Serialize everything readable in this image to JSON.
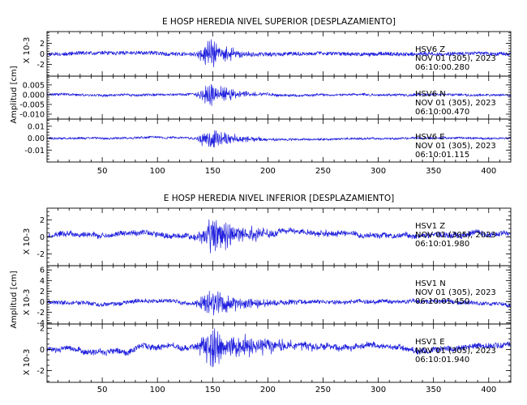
{
  "trace_color": "#1f1fdd",
  "axis_color": "#000000",
  "chart_data": [
    {
      "type": "line",
      "title": "E HOSP HEREDIA NIVEL SUPERIOR [DESPLAZAMIENTO]",
      "ylabel": "Amplitud [cm]",
      "xlim": [
        0,
        420
      ],
      "xticks": [
        50,
        100,
        150,
        200,
        250,
        300,
        350,
        400
      ],
      "xtick_labels": [
        "50",
        "100",
        "150",
        "200",
        "250",
        "300",
        "350",
        "400"
      ],
      "panels": [
        {
          "ylabel": "X 10-3",
          "ylim": [
            -4.2,
            4.2
          ],
          "yticks": [
            -2,
            0,
            2
          ],
          "ytick_labels": [
            "-2",
            "0",
            "2"
          ],
          "annotation": [
            "HSV6  Z",
            "NOV 01 (305), 2023",
            "06:10:00.280"
          ],
          "signal": {
            "noise": 0.35,
            "drift": 0.25,
            "burst_start": 133,
            "burst_peak": 149,
            "burst_decay": 16,
            "burst_amp": 3.6,
            "seed": 11
          }
        },
        {
          "ylabel": "",
          "ylim": [
            -0.0125,
            0.0095
          ],
          "yticks": [
            -0.01,
            -0.005,
            0.0,
            0.005
          ],
          "ytick_labels": [
            "-0.010",
            "-0.005",
            "0.000",
            "0.005"
          ],
          "annotation": [
            "HSV6  N",
            "NOV 01 (305), 2023",
            "06:10:00.470"
          ],
          "signal": {
            "noise": 0.0006,
            "drift": 0.0007,
            "burst_start": 133,
            "burst_peak": 149,
            "burst_decay": 18,
            "burst_amp": 0.009,
            "seed": 23
          }
        },
        {
          "ylabel": "",
          "ylim": [
            -0.02,
            0.016
          ],
          "yticks": [
            -0.01,
            0.0,
            0.01
          ],
          "ytick_labels": [
            "-0.01",
            "0.00",
            "0.01"
          ],
          "annotation": [
            "HSV6  E",
            "NOV 01 (305), 2023",
            "06:10:01.115"
          ],
          "signal": {
            "noise": 0.0009,
            "drift": 0.0008,
            "burst_start": 133,
            "burst_peak": 150,
            "burst_decay": 20,
            "burst_amp": 0.014,
            "seed": 37
          }
        }
      ]
    },
    {
      "type": "line",
      "title": "E HOSP HEREDIA NIVEL INFERIOR [DESPLAZAMIENTO]",
      "ylabel": "Amplitud [cm]",
      "xlim": [
        0,
        420
      ],
      "xticks": [
        50,
        100,
        150,
        200,
        250,
        300,
        350,
        400
      ],
      "xtick_labels": [
        "50",
        "100",
        "150",
        "200",
        "250",
        "300",
        "350",
        "400"
      ],
      "panels": [
        {
          "ylabel": "X 10-3",
          "ylim": [
            -3.4,
            3.4
          ],
          "yticks": [
            -2,
            0,
            2
          ],
          "ytick_labels": [
            "-2",
            "0",
            "2"
          ],
          "annotation": [
            "HSV1  Z",
            "NOV 01 (305), 2023",
            "06:10:01.980"
          ],
          "signal": {
            "noise": 0.3,
            "drift": 0.65,
            "burst_start": 132,
            "burst_peak": 150,
            "burst_decay": 30,
            "burst_amp": 2.9,
            "seed": 51
          }
        },
        {
          "ylabel": "X 10-3",
          "ylim": [
            -4.2,
            6.8
          ],
          "yticks": [
            -4,
            -2,
            0,
            2,
            4,
            6
          ],
          "ytick_labels": [
            "-4",
            "-2",
            "0",
            "2",
            "4",
            "6"
          ],
          "annotation": [
            "HSV1  N",
            "NOV 01 (305), 2023",
            "06:10:01.450"
          ],
          "signal": {
            "noise": 0.35,
            "drift": 0.6,
            "burst_start": 132,
            "burst_peak": 150,
            "burst_decay": 32,
            "burst_amp": 3.2,
            "seed": 67
          }
        },
        {
          "ylabel": "X 10-3",
          "ylim": [
            -3.1,
            2.4
          ],
          "yticks": [
            -2,
            0,
            2
          ],
          "ytick_labels": [
            "-2",
            "0",
            "2"
          ],
          "annotation": [
            "HSV1  E",
            "NOV 01 (305), 2023",
            "06:10:01.940"
          ],
          "signal": {
            "noise": 0.25,
            "drift": 0.5,
            "burst_start": 131,
            "burst_peak": 150,
            "burst_decay": 40,
            "burst_amp": 2.6,
            "seed": 83
          }
        }
      ]
    }
  ]
}
